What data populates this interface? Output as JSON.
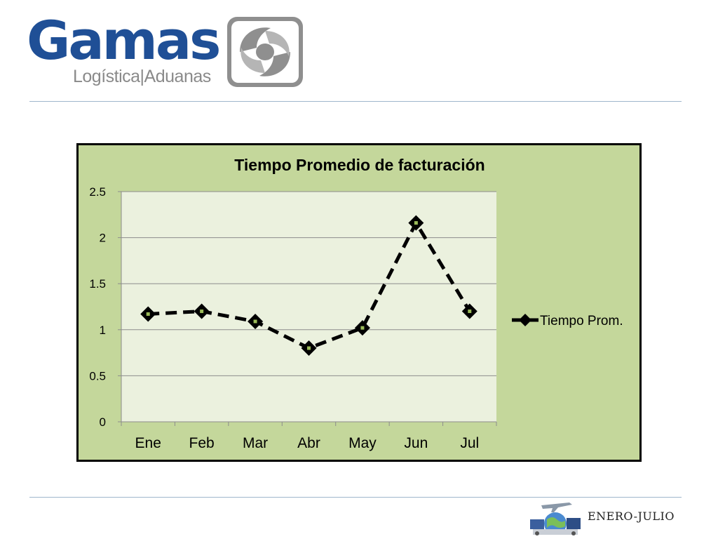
{
  "logo": {
    "word": "Gamas",
    "subtitle": "Logística|Aduanas"
  },
  "footer": {
    "period": "ENERO-JULIO"
  },
  "chart_data": {
    "type": "line",
    "title": "Tiempo Promedio de facturación",
    "categories": [
      "Ene",
      "Feb",
      "Mar",
      "Abr",
      "May",
      "Jun",
      "Jul"
    ],
    "series": [
      {
        "name": "Tiempo Prom.",
        "values": [
          1.17,
          1.2,
          1.09,
          0.8,
          1.02,
          2.16,
          1.2
        ]
      }
    ],
    "yticks": [
      "0",
      "0.5",
      "1",
      "1.5",
      "2",
      "2.5"
    ],
    "ylim": [
      0,
      2.5
    ],
    "xlabel": "",
    "ylabel": "",
    "grid": true,
    "legend": "right",
    "colors": {
      "outer": "#c4d79b",
      "plot": "#ebf1de",
      "line": "#000000",
      "marker_center": "#9bbb59",
      "grid": "#8c8c8c"
    }
  }
}
